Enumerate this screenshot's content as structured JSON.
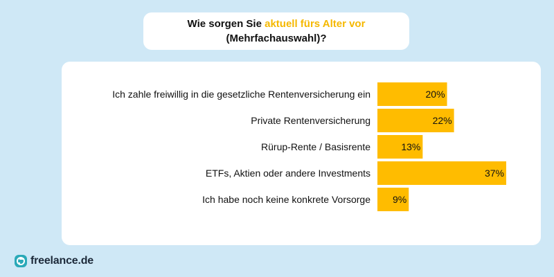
{
  "title": {
    "part1": "Wie sorgen Sie ",
    "accent": "aktuell fürs Alter vor",
    "line2": "(Mehrfachauswahl)?"
  },
  "colors": {
    "background": "#cfe8f6",
    "bar": "#ffbc00",
    "accent_text": "#f5b800",
    "logo_teal": "#2aa9b8"
  },
  "chart_data": {
    "type": "bar",
    "orientation": "horizontal",
    "title": "Wie sorgen Sie aktuell fürs Alter vor (Mehrfachauswahl)?",
    "categories": [
      "Ich zahle freiwillig in die gesetzliche Rentenversicherung ein",
      "Private Rentenversicherung",
      "Rürup-Rente / Basisrente",
      "ETFs, Aktien oder andere Investments",
      "Ich habe noch keine konkrete Vorsorge"
    ],
    "values": [
      20,
      22,
      13,
      37,
      9
    ],
    "labels": [
      "20%",
      "22%",
      "13%",
      "37%",
      "9%"
    ],
    "xlim": [
      0,
      37
    ],
    "xlabel": "",
    "ylabel": ""
  },
  "logo": {
    "text": "freelance.de",
    "icon": "freelance-logo-icon"
  }
}
